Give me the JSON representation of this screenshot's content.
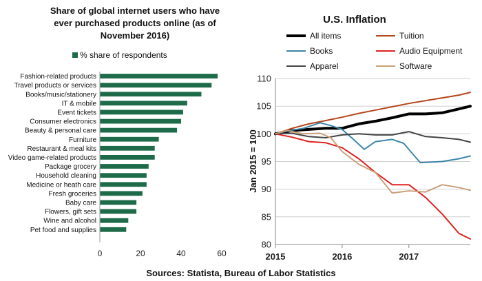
{
  "chart_data": [
    {
      "type": "bar",
      "orientation": "horizontal",
      "title_lines": [
        "Share of global internet users who have",
        "ever purchased products online (as of",
        "November 2016)"
      ],
      "legend": "% share of respondents",
      "legend_position": "top",
      "color": "#1e6b4a",
      "categories": [
        "Fashion-related products",
        "Travel products or services",
        "Books/music/stationery",
        "IT & mobile",
        "Event tickets",
        "Consumer electronics",
        "Beauty & personal care",
        "Furniture",
        "Restaurant & meal kits",
        "Video game-related products",
        "Package grocery",
        "Household cleaning",
        "Medicine or heath care",
        "Fresh groceries",
        "Baby care",
        "Flowers, gift sets",
        "Wine and alcohol",
        "Pet food and supplies"
      ],
      "values": [
        58,
        55,
        50,
        43,
        41,
        40,
        38,
        29,
        27,
        27,
        24,
        23,
        23,
        21,
        18,
        18,
        14,
        13
      ],
      "xlim": [
        0,
        60
      ],
      "xticks": [
        0,
        20,
        40,
        60
      ],
      "grid": false
    },
    {
      "type": "line",
      "title": "U.S. Inflation",
      "ylabel": "Jan 2015 = 100",
      "ylim": [
        80,
        110
      ],
      "yticks": [
        80,
        85,
        90,
        95,
        100,
        105,
        110
      ],
      "xlim": [
        2015,
        2017.92
      ],
      "xticks": [
        "2015",
        "2016",
        "2017"
      ],
      "grid": true,
      "legend_position": "top",
      "series": [
        {
          "name": "All items",
          "color": "#000000",
          "width": 4,
          "x": [
            2015,
            2015.25,
            2015.5,
            2015.75,
            2016,
            2016.25,
            2016.5,
            2016.75,
            2017,
            2017.25,
            2017.5,
            2017.75,
            2017.92
          ],
          "y": [
            100,
            100.6,
            100.8,
            101.0,
            101.0,
            101.8,
            102.3,
            102.9,
            103.6,
            103.6,
            103.8,
            104.5,
            105.0
          ]
        },
        {
          "name": "Tuition",
          "color": "#b5451b",
          "width": 2,
          "x": [
            2015,
            2015.25,
            2015.5,
            2015.75,
            2016,
            2016.25,
            2016.5,
            2016.75,
            2017,
            2017.25,
            2017.5,
            2017.75,
            2017.92
          ],
          "y": [
            100,
            101.0,
            101.8,
            102.4,
            103.0,
            103.7,
            104.3,
            104.9,
            105.5,
            106.0,
            106.5,
            107.0,
            107.5
          ]
        },
        {
          "name": "Books",
          "color": "#3d85a8",
          "width": 2,
          "x": [
            2015,
            2015.17,
            2015.42,
            2015.67,
            2015.83,
            2016,
            2016.17,
            2016.33,
            2016.5,
            2016.75,
            2016.92,
            2017.17,
            2017.5,
            2017.75,
            2017.92
          ],
          "y": [
            100,
            100.5,
            101.0,
            102.0,
            101.5,
            100.8,
            99.0,
            97.2,
            98.6,
            99.0,
            98.3,
            94.8,
            95.0,
            95.5,
            96.0
          ]
        },
        {
          "name": "Audio Equipment",
          "color": "#e02020",
          "width": 2,
          "x": [
            2015,
            2015.25,
            2015.5,
            2015.75,
            2016,
            2016.25,
            2016.5,
            2016.75,
            2017,
            2017.25,
            2017.5,
            2017.75,
            2017.92
          ],
          "y": [
            100,
            99.4,
            98.6,
            98.4,
            97.5,
            95.5,
            93.0,
            90.8,
            90.8,
            88.5,
            85.5,
            82.0,
            81.0
          ]
        },
        {
          "name": "Apparel",
          "color": "#444444",
          "width": 2,
          "x": [
            2015,
            2015.25,
            2015.5,
            2015.75,
            2016,
            2016.25,
            2016.5,
            2016.75,
            2017,
            2017.25,
            2017.5,
            2017.75,
            2017.92
          ],
          "y": [
            100,
            100.1,
            99.5,
            99.3,
            99.8,
            100.0,
            99.8,
            99.8,
            100.4,
            99.5,
            99.3,
            99.0,
            98.5
          ]
        },
        {
          "name": "Software",
          "color": "#c9a07a",
          "width": 2,
          "x": [
            2015,
            2015.17,
            2015.42,
            2015.67,
            2015.83,
            2016,
            2016.25,
            2016.5,
            2016.75,
            2017,
            2017.25,
            2017.5,
            2017.75,
            2017.92
          ],
          "y": [
            100,
            100.6,
            100.0,
            100.1,
            99.3,
            96.8,
            94.5,
            93.0,
            89.3,
            89.7,
            89.5,
            90.8,
            90.3,
            89.8
          ]
        }
      ]
    }
  ],
  "footer": {
    "source": "Sources: Statista, Bureau of Labor Statistics"
  }
}
